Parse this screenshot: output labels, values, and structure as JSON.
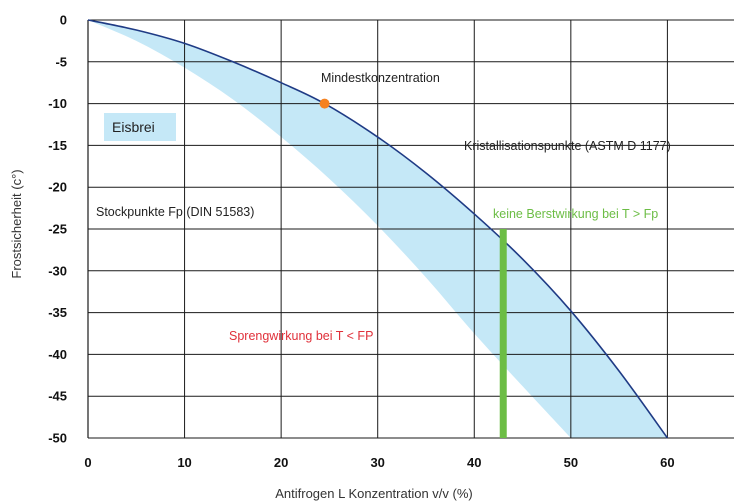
{
  "chart_data": {
    "type": "area",
    "xlabel": "Antifrogen L Konzentration v/v (%)",
    "ylabel": "Frostsicherheit (c°)",
    "xlim": [
      0,
      67
    ],
    "ylim": [
      -50,
      0
    ],
    "x_ticks": [
      0,
      10,
      20,
      30,
      40,
      50,
      60
    ],
    "y_ticks": [
      0,
      -5,
      -10,
      -15,
      -20,
      -25,
      -30,
      -35,
      -40,
      -45,
      -50
    ],
    "grid": true,
    "series": [
      {
        "name": "Kristallisationspunkte (ASTM D 1177)",
        "x": [
          0,
          5,
          10,
          15,
          20,
          24.5,
          30,
          35,
          40,
          45,
          50,
          55,
          60
        ],
        "y": [
          0,
          -1.2,
          -2.8,
          -5,
          -7.5,
          -10,
          -14,
          -18.3,
          -23.2,
          -28.6,
          -34.8,
          -42,
          -50
        ]
      },
      {
        "name": "Stockpunkte Fp (DIN 51583)",
        "x": [
          0,
          5,
          10,
          15,
          20,
          25,
          30,
          35,
          40,
          45,
          50
        ],
        "y": [
          0,
          -2.5,
          -5.7,
          -9.5,
          -14,
          -19,
          -24.6,
          -30.8,
          -37.5,
          -43.8,
          -50
        ]
      }
    ],
    "highlight_point": {
      "label": "Mindestkonzentration",
      "x": 24.5,
      "y": -10,
      "color": "#f58220"
    },
    "threshold_bar": {
      "x": 43,
      "y_top": -25,
      "y_bottom": -50,
      "color": "#6cbd45"
    },
    "annotations": {
      "mindest": "Mindestkonzentration",
      "eisbrei": "Eisbrei",
      "kristall": "Kristallisationspunkte (ASTM D 1177)",
      "stock": "Stockpunkte Fp (DIN 51583)",
      "keine": "keine Berstwirkung bei T > Fp",
      "spreng": "Sprengwirkung bei T < FP"
    },
    "colors": {
      "band": "#c5e8f7",
      "curve": "#1f3b85",
      "grid": "#1a1a1a",
      "keine": "#6cbd45",
      "spreng": "#e0303a",
      "eisbrei_box": "#c5e8f7"
    }
  }
}
